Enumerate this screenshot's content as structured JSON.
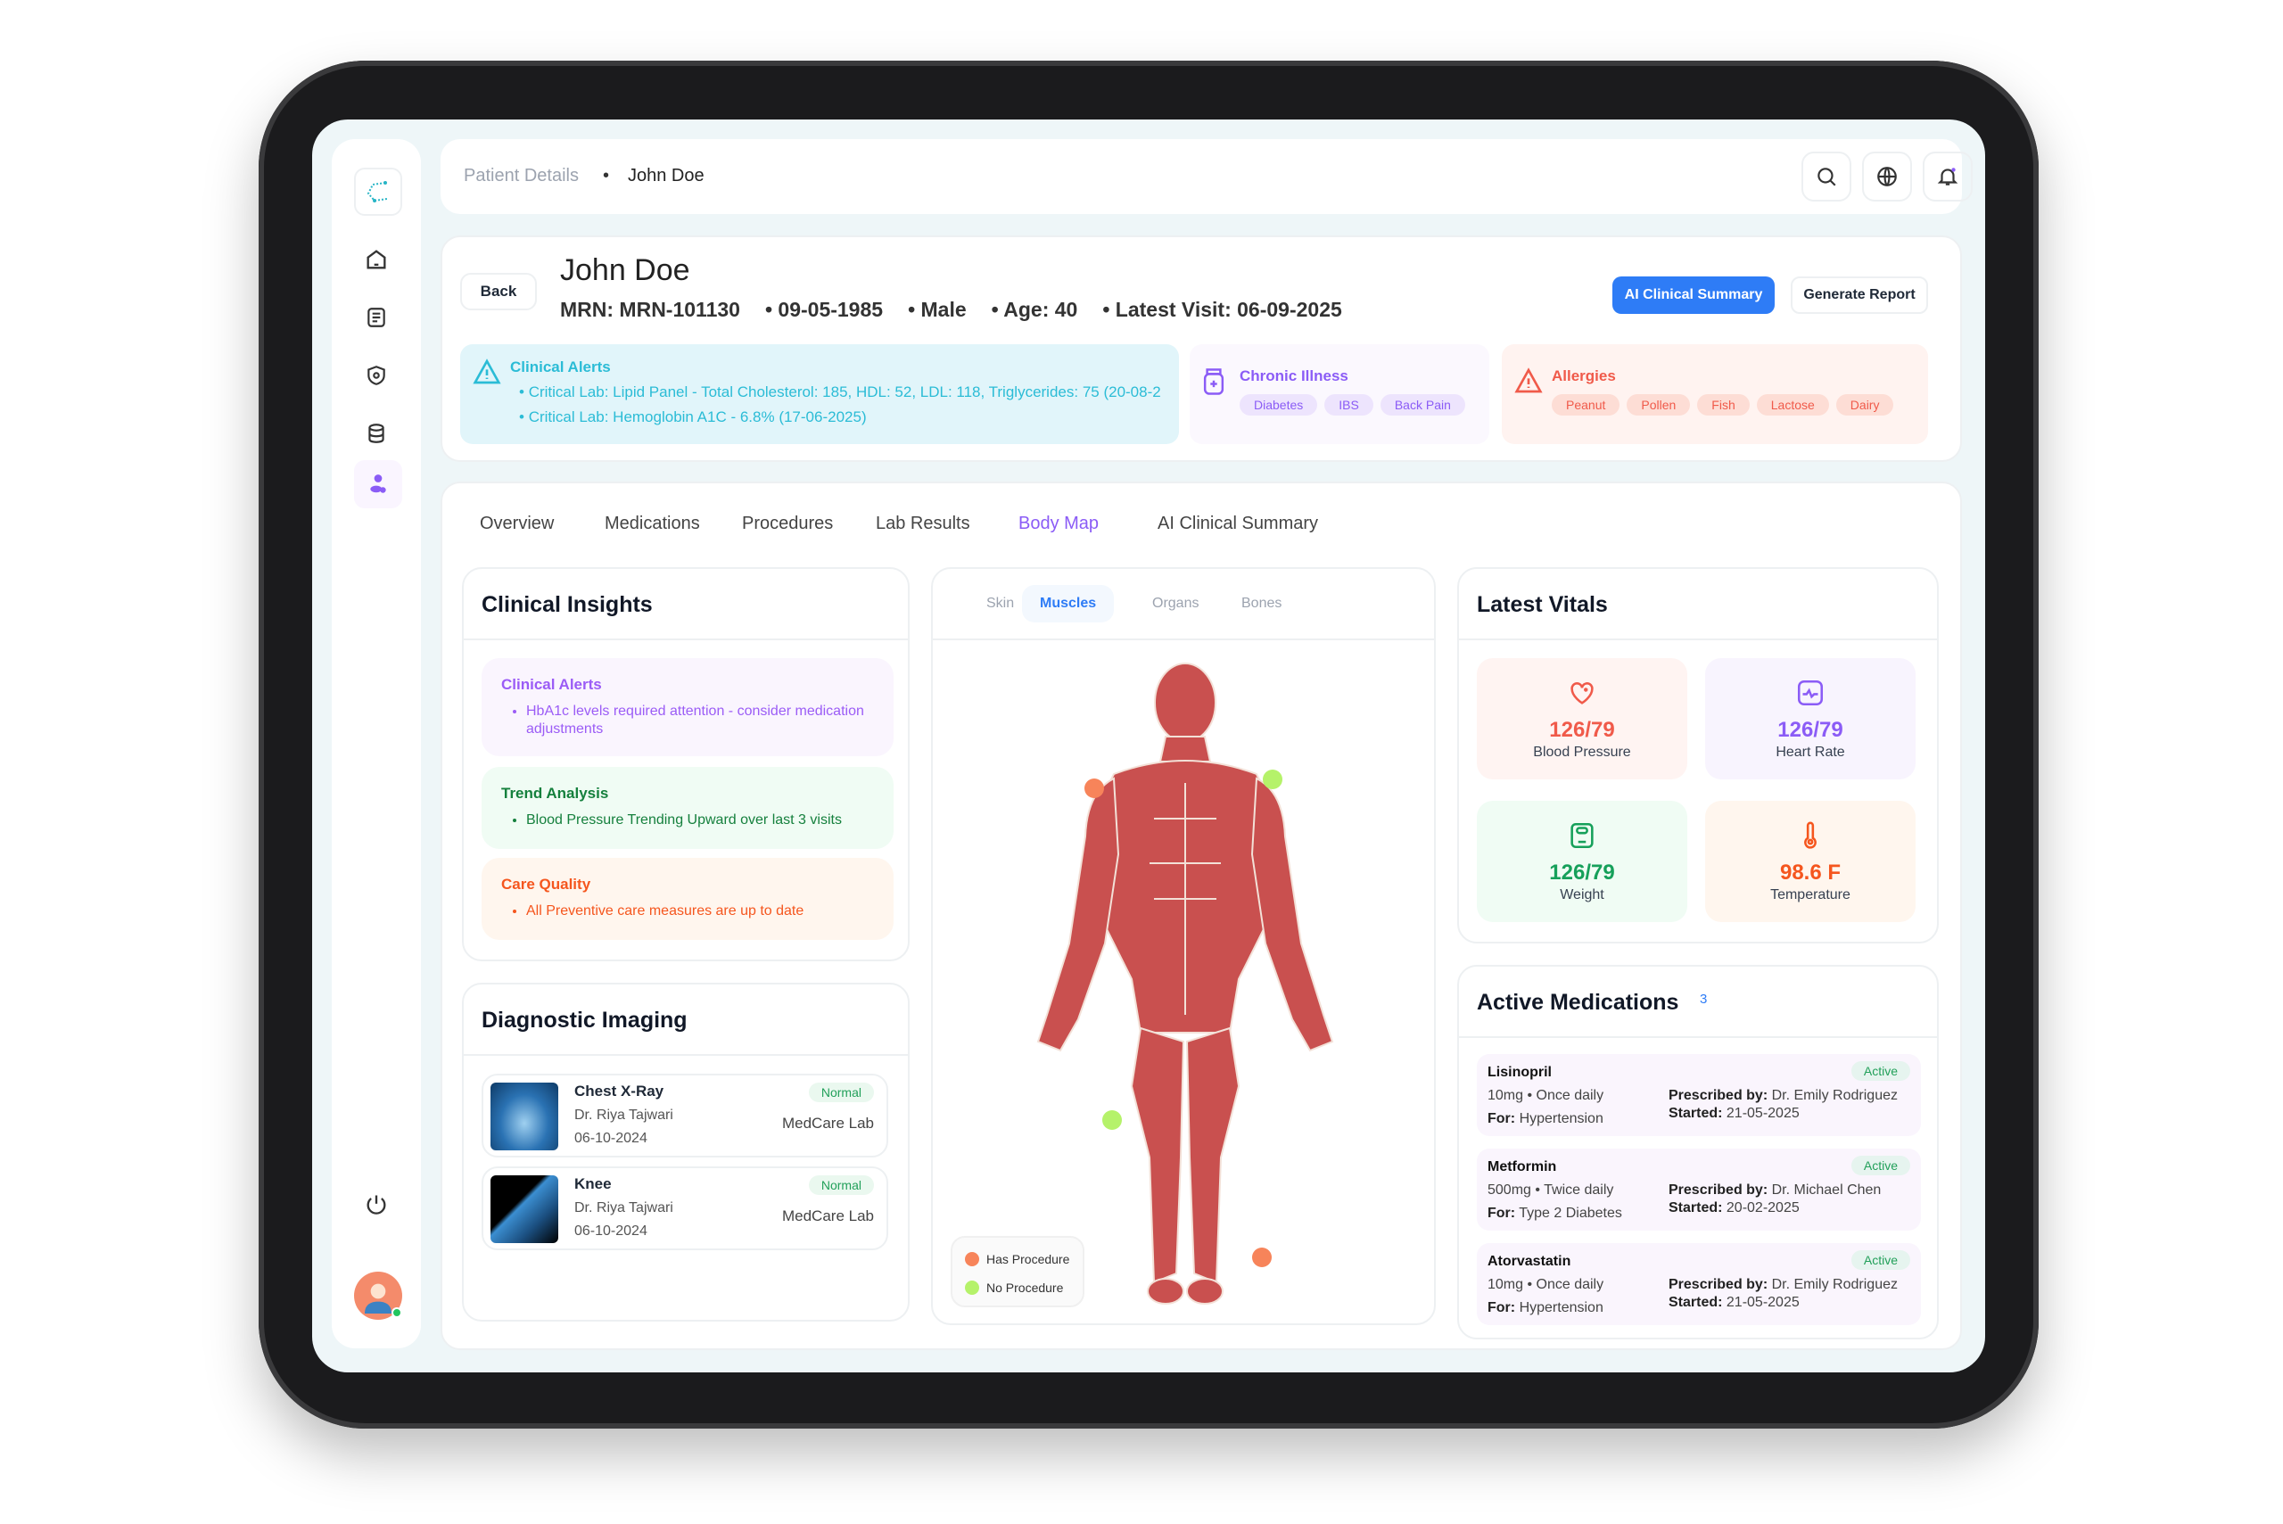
{
  "breadcrumb": {
    "parent": "Patient Details",
    "current": "John Doe"
  },
  "topbar_icons": [
    "search-icon",
    "globe-icon",
    "bell-icon"
  ],
  "sidebar": {
    "items": [
      "home-icon",
      "document-icon",
      "shield-icon",
      "database-icon",
      "patients-icon"
    ],
    "active": "patients-icon",
    "bottom": [
      "power-icon",
      "avatar"
    ]
  },
  "patient": {
    "back_label": "Back",
    "name": "John Doe",
    "mrn": "MRN: MRN-101130",
    "dob": "09-05-1985",
    "gender": "Male",
    "age": "Age: 40",
    "latest_visit": "Latest Visit: 06-09-2025",
    "ai_summary_button": "AI Clinical Summary",
    "report_button": "Generate Report"
  },
  "alerts": {
    "title": "Clinical Alerts",
    "items": [
      "Critical Lab: Lipid Panel - Total Cholesterol: 185, HDL: 52, LDL: 118, Triglycerides: 75 (20-08-2",
      "Critical Lab: Hemoglobin A1C - 6.8% (17-06-2025)"
    ]
  },
  "chronic": {
    "title": "Chronic Illness",
    "items": [
      "Diabetes",
      "IBS",
      "Back Pain"
    ]
  },
  "allergies": {
    "title": "Allergies",
    "items": [
      "Peanut",
      "Pollen",
      "Fish",
      "Lactose",
      "Dairy"
    ]
  },
  "tabs": [
    "Overview",
    "Medications",
    "Procedures",
    "Lab Results",
    "Body Map",
    "AI Clinical Summary"
  ],
  "active_tab": "Body Map",
  "insights": {
    "title": "Clinical Insights",
    "blocks": [
      {
        "title": "Clinical Alerts",
        "text": "HbA1c levels required attention - consider medication adjustments"
      },
      {
        "title": "Trend Analysis",
        "text": "Blood Pressure Trending Upward over last 3 visits"
      },
      {
        "title": "Care Quality",
        "text": "All Preventive care measures are up to date"
      }
    ]
  },
  "imaging": {
    "title": "Diagnostic Imaging",
    "items": [
      {
        "name": "Chest X-Ray",
        "doctor": "Dr. Riya Tajwari",
        "date": "06-10-2024",
        "status": "Normal",
        "lab": "MedCare Lab"
      },
      {
        "name": "Knee",
        "doctor": "Dr. Riya Tajwari",
        "date": "06-10-2024",
        "status": "Normal",
        "lab": "MedCare Lab"
      }
    ]
  },
  "bodymap": {
    "tabs": [
      "Skin",
      "Muscles",
      "Organs",
      "Bones"
    ],
    "active": "Muscles",
    "legend": {
      "has": "Has Procedure",
      "none": "No Procedure"
    },
    "colors": {
      "has": "#f7845a",
      "none": "#b5f26a",
      "muscle": "#c9504f"
    }
  },
  "vitals": {
    "title": "Latest Vitals",
    "items": [
      {
        "value": "126/79",
        "label": "Blood Pressure",
        "color": "#f05a4a",
        "bg": "#fff4f2"
      },
      {
        "value": "126/79",
        "label": "Heart Rate",
        "color": "#8b5cf6",
        "bg": "#f8f4fe"
      },
      {
        "value": "126/79",
        "label": "Weight",
        "color": "#16a05a",
        "bg": "#f0fcf4"
      },
      {
        "value": "98.6 F",
        "label": "Temperature",
        "color": "#f5561e",
        "bg": "#fff6ee"
      }
    ]
  },
  "medications": {
    "title": "Active Medications",
    "count": "3",
    "items": [
      {
        "name": "Lisinopril",
        "dose": "10mg • Once daily",
        "for_label": "For:",
        "for": "Hypertension",
        "prescribed_label": "Prescribed by:",
        "prescribed": "Dr. Emily Rodriguez",
        "started_label": "Started:",
        "started": "21-05-2025",
        "status": "Active"
      },
      {
        "name": "Metformin",
        "dose": "500mg • Twice daily",
        "for_label": "For:",
        "for": "Type 2 Diabetes",
        "prescribed_label": "Prescribed by:",
        "prescribed": "Dr. Michael Chen",
        "started_label": "Started:",
        "started": "20-02-2025",
        "status": "Active"
      },
      {
        "name": "Atorvastatin",
        "dose": "10mg • Once daily",
        "for_label": "For:",
        "for": "Hypertension",
        "prescribed_label": "Prescribed by:",
        "prescribed": "Dr. Emily Rodriguez",
        "started_label": "Started:",
        "started": "21-05-2025",
        "status": "Active"
      }
    ]
  }
}
